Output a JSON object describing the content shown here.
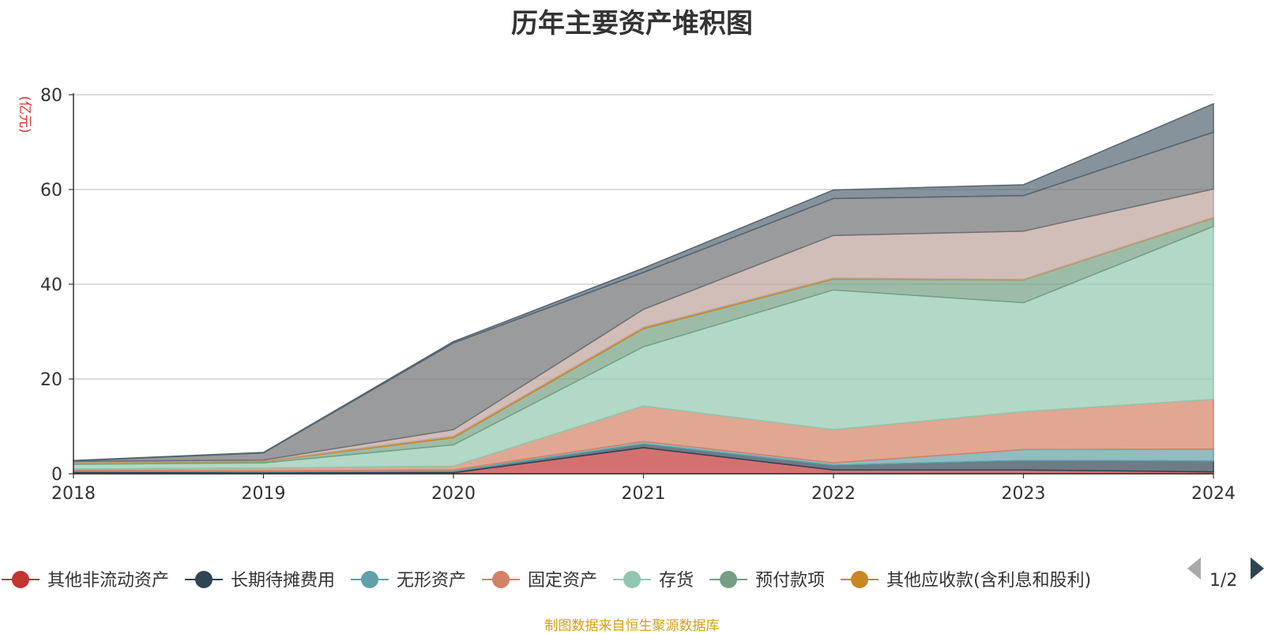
{
  "chart_data": {
    "type": "area",
    "title": "历年主要资产堆积图",
    "ylabel": "(亿元)",
    "xlabel": "",
    "categories": [
      "2018",
      "2019",
      "2020",
      "2021",
      "2022",
      "2023",
      "2024"
    ],
    "ylim": [
      0,
      80
    ],
    "yticks": [
      0,
      20,
      40,
      60,
      80
    ],
    "stacked": true,
    "grid": true,
    "legend_position": "bottom",
    "series": [
      {
        "name": "其他非流动资产",
        "color": "#c23531",
        "values": [
          0.2,
          0.2,
          0.2,
          5.5,
          0.8,
          0.8,
          0.4
        ]
      },
      {
        "name": "长期待摊费用",
        "color": "#2f4554",
        "values": [
          0.3,
          0.2,
          0.3,
          0.8,
          1.0,
          2.0,
          2.3
        ]
      },
      {
        "name": "无形资产",
        "color": "#61a0a8",
        "values": [
          0.2,
          0.2,
          0.3,
          0.5,
          0.5,
          2.3,
          2.5
        ]
      },
      {
        "name": "固定资产",
        "color": "#d48265",
        "values": [
          0.3,
          0.6,
          0.8,
          7.5,
          7.0,
          8.0,
          10.5
        ]
      },
      {
        "name": "存货",
        "color": "#91c7ae",
        "values": [
          1.0,
          1.1,
          4.5,
          12.5,
          29.5,
          23.0,
          36.5
        ]
      },
      {
        "name": "预付款项",
        "color": "#749f83",
        "values": [
          0.4,
          0.3,
          1.5,
          3.8,
          2.3,
          4.8,
          1.8
        ]
      },
      {
        "name": "其他应收款(含利息和股利)",
        "color": "#ca8622",
        "values": [
          0.1,
          0.1,
          0.3,
          0.3,
          0.2,
          0.1,
          0.1
        ]
      },
      {
        "name": "",
        "color": "#bda29a",
        "values": [
          0.1,
          0.2,
          1.4,
          3.8,
          9.0,
          10.2,
          6.0
        ]
      },
      {
        "name": "",
        "color": "#6e7074",
        "values": [
          0.1,
          1.5,
          18.3,
          7.8,
          7.8,
          7.5,
          12.0
        ]
      },
      {
        "name": "",
        "color": "#546570",
        "values": [
          0.1,
          0.1,
          0.3,
          0.9,
          1.8,
          2.3,
          6.0
        ]
      }
    ]
  },
  "legend": {
    "items": [
      {
        "label": "其他非流动资产",
        "color": "#c23531"
      },
      {
        "label": "长期待摊费用",
        "color": "#2f4554"
      },
      {
        "label": "无形资产",
        "color": "#61a0a8"
      },
      {
        "label": "固定资产",
        "color": "#d48265"
      },
      {
        "label": "存货",
        "color": "#91c7ae"
      },
      {
        "label": "预付款项",
        "color": "#749f83"
      },
      {
        "label": "其他应收款(含利息和股利)",
        "color": "#ca8622"
      }
    ],
    "page_indicator": "1/2"
  },
  "source": "制图数据来自恒生聚源数据库"
}
